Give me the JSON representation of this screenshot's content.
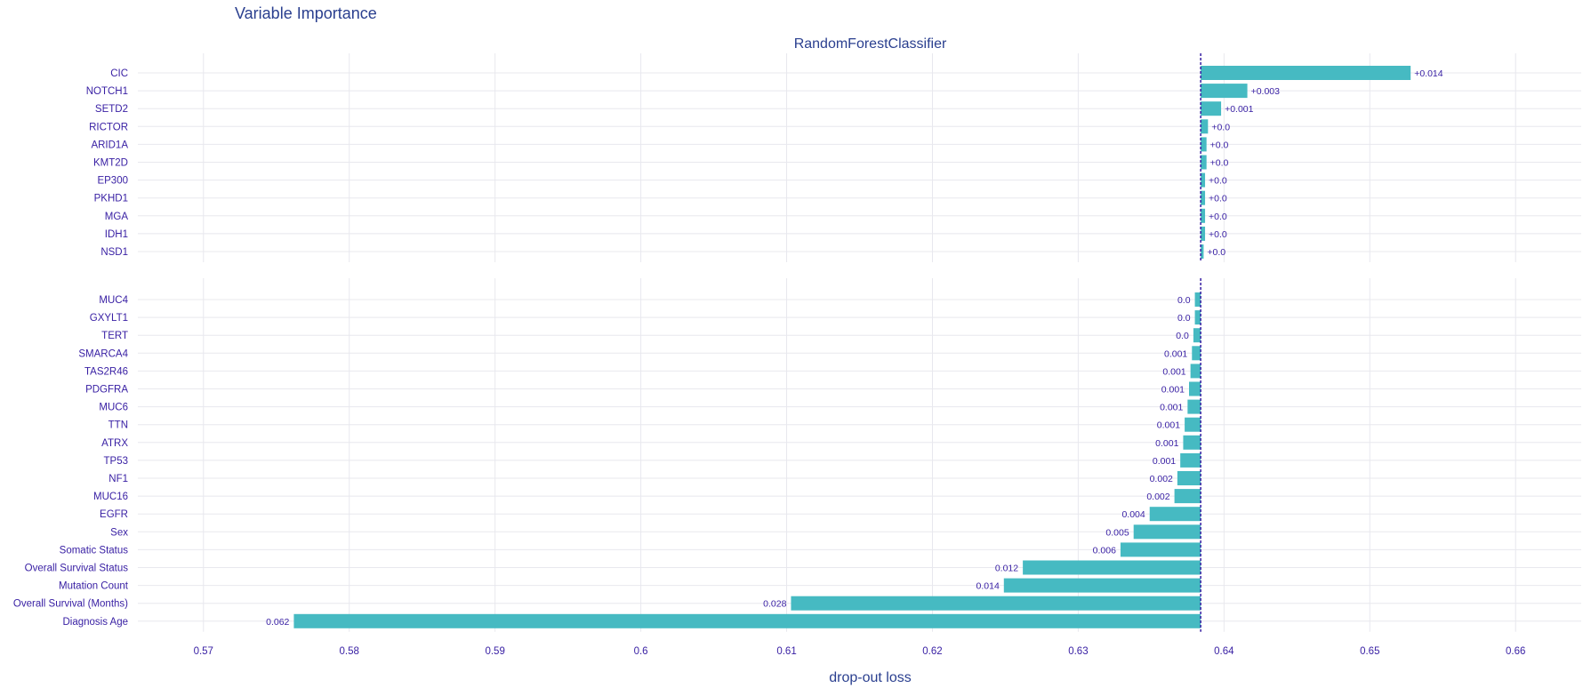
{
  "page": {
    "title": "Variable Importance"
  },
  "chart_data": {
    "type": "bar",
    "orientation": "horizontal",
    "subtitle": "RandomForestClassifier",
    "xlabel": "drop-out loss",
    "xlim": [
      0.5655,
      0.6645
    ],
    "xticks": [
      0.57,
      0.58,
      0.59,
      0.6,
      0.61,
      0.62,
      0.63,
      0.64,
      0.65,
      0.66
    ],
    "xtick_labels": [
      "0.57",
      "0.58",
      "0.59",
      "0.6",
      "0.61",
      "0.62",
      "0.63",
      "0.64",
      "0.65",
      "0.66"
    ],
    "baseline": 0.6384,
    "grid": true,
    "colors": {
      "bar": "#46bac2",
      "text": "#371ea3",
      "title": "#2a3f8f",
      "grid": "#e8e8ee",
      "baseline": "#371ea3"
    },
    "panels": [
      {
        "categories": [
          "CIC",
          "NOTCH1",
          "SETD2",
          "RICTOR",
          "ARID1A",
          "KMT2D",
          "EP300",
          "PKHD1",
          "MGA",
          "IDH1",
          "NSD1"
        ],
        "values": [
          0.6528,
          0.6416,
          0.6398,
          0.6389,
          0.6388,
          0.6388,
          0.6387,
          0.6387,
          0.6387,
          0.6387,
          0.6386
        ],
        "labels": [
          "+0.014",
          "+0.003",
          "+0.001",
          "+0.0",
          "+0.0",
          "+0.0",
          "+0.0",
          "+0.0",
          "+0.0",
          "+0.0",
          "+0.0"
        ]
      },
      {
        "categories": [
          "MUC4",
          "GXYLT1",
          "TERT",
          "SMARCA4",
          "TAS2R46",
          "PDGFRA",
          "MUC6",
          "TTN",
          "ATRX",
          "TP53",
          "NF1",
          "MUC16",
          "EGFR",
          "Sex",
          "Somatic Status",
          "Overall Survival Status",
          "Mutation Count",
          "Overall Survival (Months)",
          "Diagnosis Age"
        ],
        "values": [
          0.638,
          0.638,
          0.6379,
          0.6378,
          0.6377,
          0.6376,
          0.6375,
          0.6373,
          0.6372,
          0.637,
          0.6368,
          0.6366,
          0.6349,
          0.6338,
          0.6329,
          0.6262,
          0.6249,
          0.6103,
          0.5762
        ],
        "labels": [
          "0.0",
          "0.0",
          "0.0",
          "0.001",
          "0.001",
          "0.001",
          "0.001",
          "0.001",
          "0.001",
          "0.001",
          "0.002",
          "0.002",
          "0.004",
          "0.005",
          "0.006",
          "0.012",
          "0.014",
          "0.028",
          "0.062"
        ]
      }
    ]
  }
}
